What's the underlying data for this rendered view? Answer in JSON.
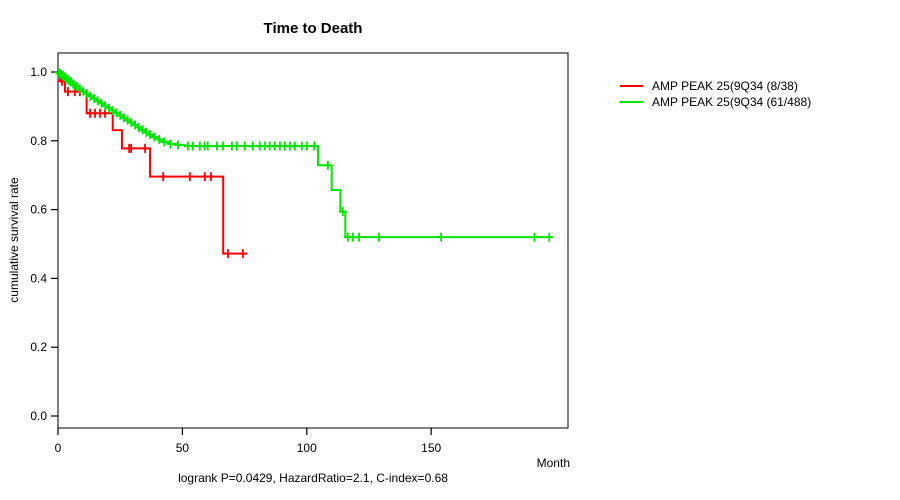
{
  "chart_data": {
    "type": "line",
    "subtype": "kaplan_meier_step",
    "title": "Time to Death",
    "xlabel": "Month",
    "ylabel": "cumulative survival rate",
    "footnote": "logrank P=0.0429, HazardRatio=2.1, C-index=0.68",
    "xlim": [
      0,
      205
    ],
    "ylim": [
      0.0,
      1.0
    ],
    "x_ticks": [
      0,
      50,
      100,
      150
    ],
    "y_ticks": [
      1.0,
      0.8,
      0.6,
      0.4,
      0.2,
      0.0
    ],
    "grid": false,
    "legend_position": "right-outside",
    "box_color": "#2b2b2b",
    "series": [
      {
        "name": "AMP PEAK 25(9Q34 (8/38)",
        "color": "#ff0000",
        "steps": [
          [
            0,
            1.0
          ],
          [
            0.8,
            0.973
          ],
          [
            2.8,
            0.943
          ],
          [
            11.5,
            0.88
          ],
          [
            22,
            0.831
          ],
          [
            25.7,
            0.778
          ],
          [
            37,
            0.696
          ],
          [
            66.4,
            0.472
          ],
          [
            76,
            0.472
          ]
        ],
        "censors": [
          [
            1.6,
            0.973
          ],
          [
            4.0,
            0.943
          ],
          [
            6.8,
            0.943
          ],
          [
            8.8,
            0.943
          ],
          [
            12.9,
            0.88
          ],
          [
            14.9,
            0.88
          ],
          [
            16.9,
            0.88
          ],
          [
            18.9,
            0.88
          ],
          [
            28.6,
            0.778
          ],
          [
            29.4,
            0.778
          ],
          [
            35,
            0.778
          ],
          [
            42.3,
            0.696
          ],
          [
            53,
            0.696
          ],
          [
            59,
            0.696
          ],
          [
            61.5,
            0.696
          ],
          [
            68.3,
            0.472
          ],
          [
            74.3,
            0.472
          ]
        ]
      },
      {
        "name": "AMP PEAK 25(9Q34 (61/488)",
        "color": "#00e600",
        "steps": [
          [
            0,
            1.0
          ],
          [
            1,
            0.993
          ],
          [
            2.2,
            0.986
          ],
          [
            3.4,
            0.979
          ],
          [
            4.6,
            0.972
          ],
          [
            5.8,
            0.965
          ],
          [
            7,
            0.958
          ],
          [
            8.4,
            0.951
          ],
          [
            9.8,
            0.944
          ],
          [
            11.2,
            0.937
          ],
          [
            12.6,
            0.93
          ],
          [
            14,
            0.923
          ],
          [
            15.5,
            0.916
          ],
          [
            17,
            0.909
          ],
          [
            18.5,
            0.902
          ],
          [
            20,
            0.895
          ],
          [
            21.5,
            0.888
          ],
          [
            23,
            0.881
          ],
          [
            24.5,
            0.874
          ],
          [
            26,
            0.867
          ],
          [
            27.5,
            0.86
          ],
          [
            29,
            0.853
          ],
          [
            30.5,
            0.846
          ],
          [
            32,
            0.839
          ],
          [
            33.5,
            0.832
          ],
          [
            35,
            0.825
          ],
          [
            36.5,
            0.818
          ],
          [
            38,
            0.811
          ],
          [
            40,
            0.804
          ],
          [
            42,
            0.797
          ],
          [
            44.5,
            0.791
          ],
          [
            47.5,
            0.788
          ],
          [
            51,
            0.785
          ],
          [
            104.5,
            0.729
          ],
          [
            110,
            0.657
          ],
          [
            113.5,
            0.594
          ],
          [
            115.5,
            0.52
          ],
          [
            198.5,
            0.52
          ]
        ],
        "censors": [
          [
            0.4,
            0.998
          ],
          [
            0.9,
            0.995
          ],
          [
            1.3,
            0.993
          ],
          [
            1.9,
            0.99
          ],
          [
            2.5,
            0.986
          ],
          [
            3.1,
            0.983
          ],
          [
            3.8,
            0.979
          ],
          [
            4.4,
            0.976
          ],
          [
            5.2,
            0.972
          ],
          [
            6.1,
            0.965
          ],
          [
            6.7,
            0.962
          ],
          [
            7.6,
            0.958
          ],
          [
            8.8,
            0.951
          ],
          [
            10.2,
            0.944
          ],
          [
            11.6,
            0.937
          ],
          [
            13,
            0.93
          ],
          [
            14.6,
            0.923
          ],
          [
            16,
            0.916
          ],
          [
            17.5,
            0.909
          ],
          [
            19,
            0.902
          ],
          [
            20.5,
            0.895
          ],
          [
            22,
            0.888
          ],
          [
            23.5,
            0.881
          ],
          [
            25,
            0.874
          ],
          [
            26.5,
            0.867
          ],
          [
            28,
            0.86
          ],
          [
            29.5,
            0.853
          ],
          [
            31,
            0.846
          ],
          [
            32.5,
            0.839
          ],
          [
            34,
            0.832
          ],
          [
            35.5,
            0.825
          ],
          [
            37,
            0.818
          ],
          [
            38.7,
            0.811
          ],
          [
            40.7,
            0.804
          ],
          [
            42.7,
            0.797
          ],
          [
            45.2,
            0.791
          ],
          [
            48.2,
            0.788
          ],
          [
            52.2,
            0.785
          ],
          [
            54.2,
            0.785
          ],
          [
            57,
            0.785
          ],
          [
            59,
            0.785
          ],
          [
            60.2,
            0.785
          ],
          [
            63.9,
            0.785
          ],
          [
            66.3,
            0.785
          ],
          [
            69.9,
            0.785
          ],
          [
            71.9,
            0.785
          ],
          [
            75.1,
            0.785
          ],
          [
            78.3,
            0.785
          ],
          [
            81.1,
            0.785
          ],
          [
            83.1,
            0.785
          ],
          [
            85.1,
            0.785
          ],
          [
            87.1,
            0.785
          ],
          [
            89.2,
            0.785
          ],
          [
            91.2,
            0.785
          ],
          [
            93.2,
            0.785
          ],
          [
            95.2,
            0.785
          ],
          [
            98,
            0.785
          ],
          [
            100,
            0.785
          ],
          [
            103,
            0.785
          ],
          [
            108.5,
            0.729
          ],
          [
            114.5,
            0.594
          ],
          [
            116.5,
            0.52
          ],
          [
            118.5,
            0.52
          ],
          [
            121,
            0.52
          ],
          [
            129,
            0.52
          ],
          [
            154,
            0.52
          ],
          [
            191.5,
            0.52
          ],
          [
            197.5,
            0.52
          ]
        ]
      }
    ]
  }
}
